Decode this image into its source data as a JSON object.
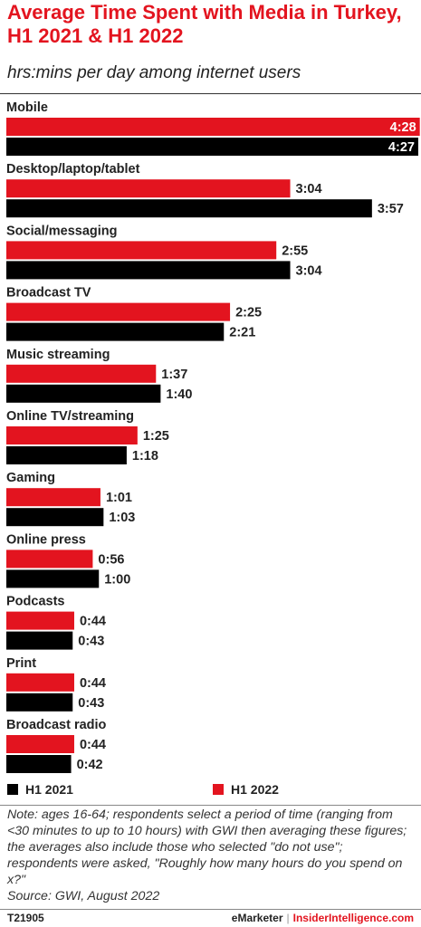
{
  "title": "Average Time Spent with Media in Turkey, H1 2021 & H1 2022",
  "subtitle": "hrs:mins per day among internet users",
  "colors": {
    "h1_2022": "#e3141f",
    "h1_2021": "#000000",
    "accent": "#e3141f"
  },
  "chart_data": {
    "type": "bar",
    "orientation": "horizontal",
    "unit": "hrs:mins per day",
    "categories": [
      "Mobile",
      "Desktop/laptop/tablet",
      "Social/messaging",
      "Broadcast TV",
      "Music streaming",
      "Online TV/streaming",
      "Gaming",
      "Online press",
      "Podcasts",
      "Print",
      "Broadcast radio"
    ],
    "series": [
      {
        "name": "H1 2022",
        "color": "#e3141f",
        "values": [
          268,
          184,
          175,
          145,
          97,
          85,
          61,
          56,
          44,
          44,
          44
        ],
        "labels": [
          "4:28",
          "3:04",
          "2:55",
          "2:25",
          "1:37",
          "1:25",
          "1:01",
          "0:56",
          "0:44",
          "0:44",
          "0:44"
        ]
      },
      {
        "name": "H1 2021",
        "color": "#000000",
        "values": [
          267,
          237,
          184,
          141,
          100,
          78,
          63,
          60,
          43,
          43,
          42
        ],
        "labels": [
          "4:27",
          "3:57",
          "3:04",
          "2:21",
          "1:40",
          "1:18",
          "1:03",
          "1:00",
          "0:43",
          "0:43",
          "0:42"
        ]
      }
    ],
    "legend": {
      "position": "bottom",
      "order": [
        "H1 2021",
        "H1 2022"
      ]
    },
    "grid": false
  },
  "note": "Note: ages 16-64; respondents select a period of time (ranging from <30 minutes to up to 10 hours) with GWI then averaging these figures; the averages also include those who selected \"do not use\"; respondents were asked, \"Roughly how many hours do you spend on x?\"",
  "source": "Source: GWI, August 2022",
  "footer": {
    "chart_id": "T21905",
    "brand_left": "eMarketer",
    "separator": "|",
    "brand_right": "InsiderIntelligence.com"
  }
}
